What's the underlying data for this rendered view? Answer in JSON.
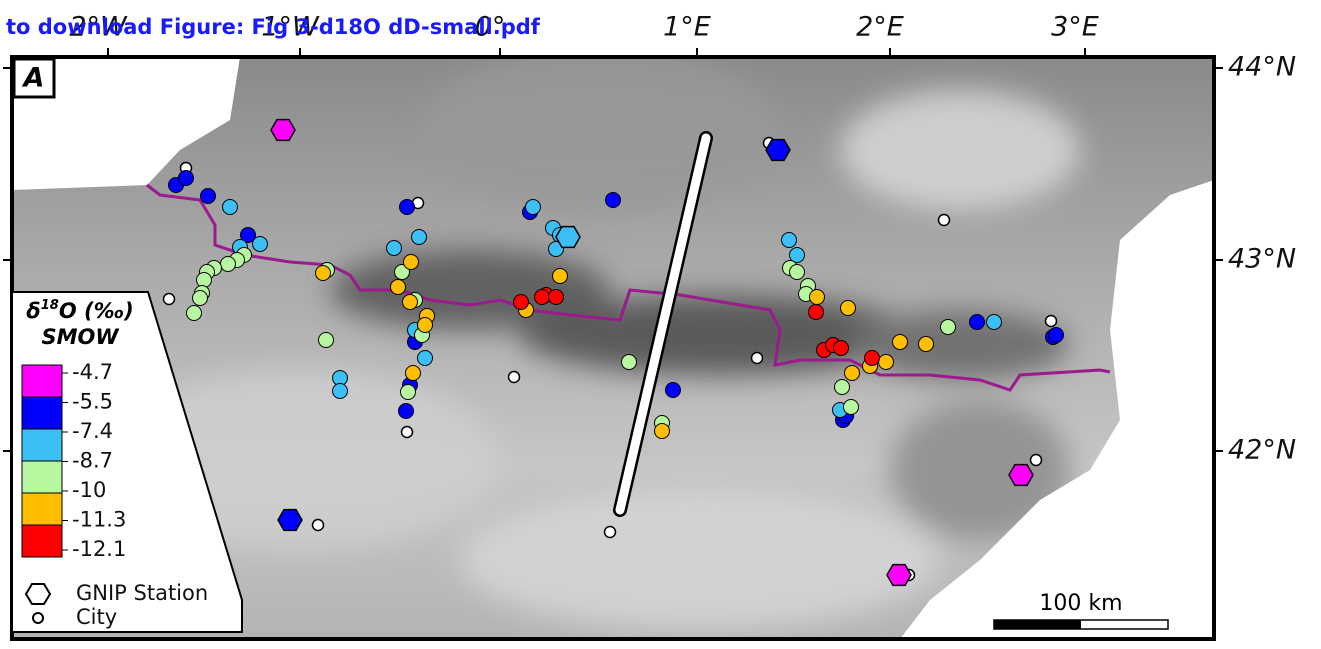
{
  "download_link": "to download Figure: Fig 3-d18O dD-small.pdf",
  "panel_label": "A",
  "longitude_labels": [
    "2°W",
    "1°W",
    "0°",
    "1°E",
    "2°E",
    "3°E"
  ],
  "latitude_labels": [
    "44°N",
    "43°N",
    "42°N"
  ],
  "legend": {
    "title": {
      "symbol": "δ",
      "superscript": "18",
      "rest": "O (‰)"
    },
    "subtitle": "SMOW",
    "scale_labels": [
      "-4.7",
      "-5.5",
      "-7.4",
      "-8.7",
      "-10",
      "-11.3",
      "-12.1"
    ],
    "colors": [
      "#ff00ff",
      "#0000ff",
      "#3cbff5",
      "#b6f7a0",
      "#ffbf00",
      "#ff0000"
    ],
    "symbols": [
      "GNIP Station",
      "City"
    ]
  },
  "scale_bar": "100 km"
}
